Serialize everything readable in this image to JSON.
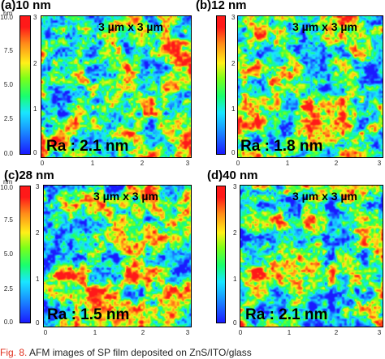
{
  "colorbar": {
    "unit": "nm",
    "ticks": [
      "10.0",
      "7.5",
      "5.0",
      "2.5",
      "0.0"
    ]
  },
  "axes": {
    "x_ticks": [
      "0",
      "1",
      "2",
      "3"
    ],
    "y_ticks": [
      "0",
      "1",
      "2",
      "3"
    ]
  },
  "panels": [
    {
      "label": "(a)10 nm",
      "scan_size": "3 µm x 3 µm",
      "ra": "Ra : 2.1 nm"
    },
    {
      "label": "(b)12 nm",
      "scan_size": "3 µm x 3 µm",
      "ra": "Ra : 1.8 nm"
    },
    {
      "label": "(c)28 nm",
      "scan_size": "3 µm x 3 µm",
      "ra": "Ra : 1.5 nm"
    },
    {
      "label": "(d)40 nm",
      "scan_size": "3 µm x 3 µm",
      "ra": "Ra : 2.1 nm"
    }
  ],
  "caption": {
    "fig": "Fig. 8.",
    "text": "  AFM images of SP film deposited on ZnS/ITO/glass"
  }
}
